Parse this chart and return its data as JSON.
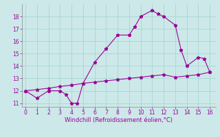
{
  "xlabel": "Windchill (Refroidissement éolien,°C)",
  "line1_x": [
    0,
    1,
    2,
    3,
    3.5,
    4,
    4.5,
    5,
    6,
    7,
    8,
    9,
    9.5,
    10,
    11,
    11.5,
    12,
    13,
    13.5,
    14,
    15,
    15.5,
    16
  ],
  "line1_y": [
    12,
    11.4,
    12,
    12,
    11.7,
    11,
    11,
    12.6,
    14.3,
    15.4,
    16.5,
    16.5,
    17.2,
    18.0,
    18.5,
    18.2,
    18.0,
    17.3,
    15.3,
    14.0,
    14.7,
    14.6,
    13.5
  ],
  "line2_x": [
    0,
    1,
    2,
    3,
    4,
    5,
    6,
    7,
    8,
    9,
    10,
    11,
    12,
    13,
    14,
    15,
    16
  ],
  "line2_y": [
    12.0,
    12.1,
    12.2,
    12.35,
    12.45,
    12.6,
    12.7,
    12.8,
    12.9,
    13.0,
    13.1,
    13.2,
    13.3,
    13.1,
    13.2,
    13.3,
    13.5
  ],
  "line_color": "#990099",
  "bg_color": "#cce8e8",
  "grid_color": "#aad4d4",
  "xlim": [
    -0.3,
    16.5
  ],
  "ylim": [
    10.7,
    19.0
  ],
  "xticks": [
    0,
    1,
    2,
    3,
    4,
    5,
    6,
    7,
    8,
    9,
    10,
    11,
    12,
    13,
    14,
    15,
    16
  ],
  "yticks": [
    11,
    12,
    13,
    14,
    15,
    16,
    17,
    18
  ],
  "tick_fontsize": 5.5,
  "label_fontsize": 6.0
}
